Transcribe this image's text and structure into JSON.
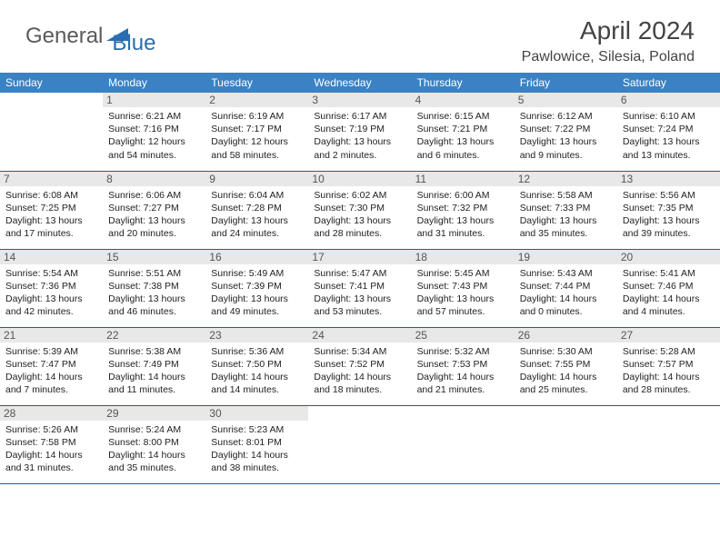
{
  "logo": {
    "general": "General",
    "blue": "Blue"
  },
  "title": "April 2024",
  "location": "Pawlowice, Silesia, Poland",
  "colors": {
    "header_bg": "#3a82c4",
    "header_text": "#ffffff",
    "daynum_bg": "#e8e8e8",
    "daynum_text": "#555555",
    "cell_border": "#2a5a8a",
    "body_text": "#222222",
    "logo_gray": "#5a5a5a",
    "logo_blue": "#2a6db0",
    "title_color": "#444444"
  },
  "type": "table",
  "columns": [
    "Sunday",
    "Monday",
    "Tuesday",
    "Wednesday",
    "Thursday",
    "Friday",
    "Saturday"
  ],
  "weeks": [
    [
      {
        "n": "",
        "sr": "",
        "ss": "",
        "dl": ""
      },
      {
        "n": "1",
        "sr": "6:21 AM",
        "ss": "7:16 PM",
        "dl": "12 hours and 54 minutes."
      },
      {
        "n": "2",
        "sr": "6:19 AM",
        "ss": "7:17 PM",
        "dl": "12 hours and 58 minutes."
      },
      {
        "n": "3",
        "sr": "6:17 AM",
        "ss": "7:19 PM",
        "dl": "13 hours and 2 minutes."
      },
      {
        "n": "4",
        "sr": "6:15 AM",
        "ss": "7:21 PM",
        "dl": "13 hours and 6 minutes."
      },
      {
        "n": "5",
        "sr": "6:12 AM",
        "ss": "7:22 PM",
        "dl": "13 hours and 9 minutes."
      },
      {
        "n": "6",
        "sr": "6:10 AM",
        "ss": "7:24 PM",
        "dl": "13 hours and 13 minutes."
      }
    ],
    [
      {
        "n": "7",
        "sr": "6:08 AM",
        "ss": "7:25 PM",
        "dl": "13 hours and 17 minutes."
      },
      {
        "n": "8",
        "sr": "6:06 AM",
        "ss": "7:27 PM",
        "dl": "13 hours and 20 minutes."
      },
      {
        "n": "9",
        "sr": "6:04 AM",
        "ss": "7:28 PM",
        "dl": "13 hours and 24 minutes."
      },
      {
        "n": "10",
        "sr": "6:02 AM",
        "ss": "7:30 PM",
        "dl": "13 hours and 28 minutes."
      },
      {
        "n": "11",
        "sr": "6:00 AM",
        "ss": "7:32 PM",
        "dl": "13 hours and 31 minutes."
      },
      {
        "n": "12",
        "sr": "5:58 AM",
        "ss": "7:33 PM",
        "dl": "13 hours and 35 minutes."
      },
      {
        "n": "13",
        "sr": "5:56 AM",
        "ss": "7:35 PM",
        "dl": "13 hours and 39 minutes."
      }
    ],
    [
      {
        "n": "14",
        "sr": "5:54 AM",
        "ss": "7:36 PM",
        "dl": "13 hours and 42 minutes."
      },
      {
        "n": "15",
        "sr": "5:51 AM",
        "ss": "7:38 PM",
        "dl": "13 hours and 46 minutes."
      },
      {
        "n": "16",
        "sr": "5:49 AM",
        "ss": "7:39 PM",
        "dl": "13 hours and 49 minutes."
      },
      {
        "n": "17",
        "sr": "5:47 AM",
        "ss": "7:41 PM",
        "dl": "13 hours and 53 minutes."
      },
      {
        "n": "18",
        "sr": "5:45 AM",
        "ss": "7:43 PM",
        "dl": "13 hours and 57 minutes."
      },
      {
        "n": "19",
        "sr": "5:43 AM",
        "ss": "7:44 PM",
        "dl": "14 hours and 0 minutes."
      },
      {
        "n": "20",
        "sr": "5:41 AM",
        "ss": "7:46 PM",
        "dl": "14 hours and 4 minutes."
      }
    ],
    [
      {
        "n": "21",
        "sr": "5:39 AM",
        "ss": "7:47 PM",
        "dl": "14 hours and 7 minutes."
      },
      {
        "n": "22",
        "sr": "5:38 AM",
        "ss": "7:49 PM",
        "dl": "14 hours and 11 minutes."
      },
      {
        "n": "23",
        "sr": "5:36 AM",
        "ss": "7:50 PM",
        "dl": "14 hours and 14 minutes."
      },
      {
        "n": "24",
        "sr": "5:34 AM",
        "ss": "7:52 PM",
        "dl": "14 hours and 18 minutes."
      },
      {
        "n": "25",
        "sr": "5:32 AM",
        "ss": "7:53 PM",
        "dl": "14 hours and 21 minutes."
      },
      {
        "n": "26",
        "sr": "5:30 AM",
        "ss": "7:55 PM",
        "dl": "14 hours and 25 minutes."
      },
      {
        "n": "27",
        "sr": "5:28 AM",
        "ss": "7:57 PM",
        "dl": "14 hours and 28 minutes."
      }
    ],
    [
      {
        "n": "28",
        "sr": "5:26 AM",
        "ss": "7:58 PM",
        "dl": "14 hours and 31 minutes."
      },
      {
        "n": "29",
        "sr": "5:24 AM",
        "ss": "8:00 PM",
        "dl": "14 hours and 35 minutes."
      },
      {
        "n": "30",
        "sr": "5:23 AM",
        "ss": "8:01 PM",
        "dl": "14 hours and 38 minutes."
      },
      {
        "n": "",
        "sr": "",
        "ss": "",
        "dl": ""
      },
      {
        "n": "",
        "sr": "",
        "ss": "",
        "dl": ""
      },
      {
        "n": "",
        "sr": "",
        "ss": "",
        "dl": ""
      },
      {
        "n": "",
        "sr": "",
        "ss": "",
        "dl": ""
      }
    ]
  ],
  "labels": {
    "sunrise": "Sunrise:",
    "sunset": "Sunset:",
    "daylight": "Daylight:"
  },
  "font": {
    "header_size": 12,
    "daynum_size": 12,
    "cell_size": 10.5,
    "title_size": 28,
    "location_size": 16
  }
}
